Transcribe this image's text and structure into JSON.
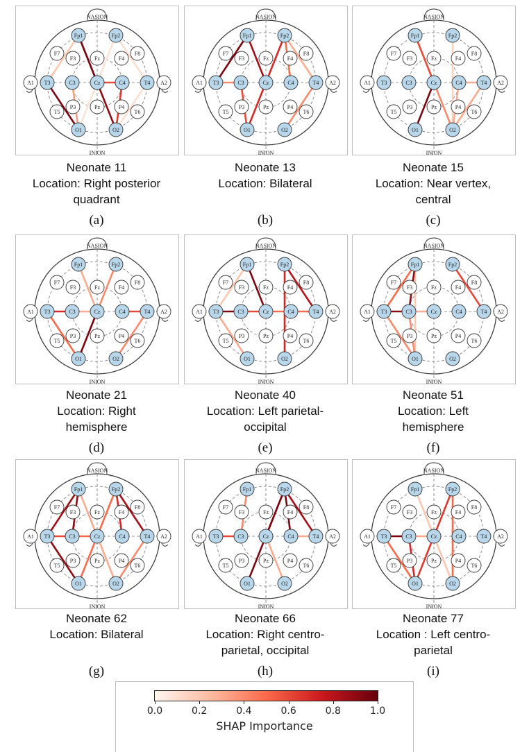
{
  "head_labels": {
    "top": "NASION",
    "bottom": "INION"
  },
  "electrodes": [
    "Fp1",
    "Fp2",
    "F7",
    "F3",
    "Fz",
    "F4",
    "F8",
    "A1",
    "T3",
    "C3",
    "Cz",
    "C4",
    "T4",
    "A2",
    "T5",
    "P3",
    "Pz",
    "P4",
    "T6",
    "O1",
    "O2"
  ],
  "highlighted_electrodes": [
    "Fp1",
    "Fp2",
    "T3",
    "C3",
    "Cz",
    "C4",
    "T4",
    "O1",
    "O2"
  ],
  "colors": {
    "node_highlight": "#b9d7ea",
    "node_plain": "#ffffff"
  },
  "panels": [
    {
      "letter": "(a)",
      "caption": [
        "Neonate 11",
        "Location: Right posterior",
        "quadrant"
      ],
      "edges": [
        [
          "Fp1",
          "Cz",
          0.95
        ],
        [
          "Fp1",
          "O2",
          0.9
        ],
        [
          "T3",
          "O1",
          0.95
        ],
        [
          "C4",
          "O2",
          0.65
        ],
        [
          "Cz",
          "C4",
          0.6
        ],
        [
          "C3",
          "O1",
          0.35
        ],
        [
          "Fp1",
          "T3",
          0.2
        ],
        [
          "Fp2",
          "T4",
          0.1
        ],
        [
          "T4",
          "O2",
          0.1
        ],
        [
          "Fp2",
          "O1",
          0.08
        ]
      ]
    },
    {
      "letter": "(b)",
      "caption": [
        "Neonate 13",
        "Location: Bilateral"
      ],
      "edges": [
        [
          "Fp1",
          "T3",
          0.95
        ],
        [
          "Fp1",
          "Cz",
          0.85
        ],
        [
          "Fp2",
          "O1",
          0.7
        ],
        [
          "C3",
          "O1",
          0.6
        ],
        [
          "T3",
          "C3",
          0.4
        ],
        [
          "Fp2",
          "C4",
          0.5
        ],
        [
          "T4",
          "O2",
          0.4
        ],
        [
          "Fp2",
          "T4",
          0.3
        ]
      ]
    },
    {
      "letter": "(c)",
      "caption": [
        "Neonate 15",
        "Location: Near vertex,",
        "central"
      ],
      "edges": [
        [
          "Fp1",
          "Cz",
          0.6
        ],
        [
          "Cz",
          "O1",
          0.95
        ],
        [
          "Cz",
          "O2",
          0.4
        ],
        [
          "C4",
          "O2",
          0.3
        ],
        [
          "T4",
          "O2",
          0.3
        ],
        [
          "C4",
          "T4",
          0.3
        ],
        [
          "Fp2",
          "O2",
          0.15
        ]
      ]
    },
    {
      "letter": "(d)",
      "caption": [
        "Neonate 21",
        "Location: Right",
        "hemisphere"
      ],
      "edges": [
        [
          "T3",
          "C3",
          0.7
        ],
        [
          "T3",
          "O1",
          0.5
        ],
        [
          "Cz",
          "O1",
          0.95
        ],
        [
          "Fp2",
          "O1",
          0.4
        ],
        [
          "C4",
          "T4",
          0.6
        ],
        [
          "T4",
          "O2",
          0.4
        ],
        [
          "Fp1",
          "Cz",
          0.3
        ],
        [
          "C3",
          "Cz",
          0.3
        ]
      ]
    },
    {
      "letter": "(e)",
      "caption": [
        "Neonate 40",
        "Location: Left parietal-",
        "occipital"
      ],
      "edges": [
        [
          "T3",
          "C3",
          0.95
        ],
        [
          "C3",
          "Cz",
          0.6
        ],
        [
          "Cz",
          "C4",
          0.5
        ],
        [
          "Fp1",
          "Cz",
          0.95
        ],
        [
          "Fp2",
          "T4",
          0.8
        ],
        [
          "Fp2",
          "O2",
          0.7
        ],
        [
          "C4",
          "T4",
          0.5
        ],
        [
          "T3",
          "O1",
          0.3
        ],
        [
          "Fp1",
          "T3",
          0.2
        ]
      ]
    },
    {
      "letter": "(f)",
      "caption": [
        "Neonate 51",
        "Location: Left",
        "hemisphere"
      ],
      "edges": [
        [
          "Fp1",
          "T3",
          0.5
        ],
        [
          "Fp1",
          "C3",
          0.9
        ],
        [
          "T3",
          "C3",
          0.9
        ],
        [
          "C3",
          "O1",
          0.4
        ],
        [
          "T3",
          "O1",
          0.4
        ],
        [
          "Fp2",
          "T4",
          0.6
        ],
        [
          "Fp1",
          "O1",
          0.2
        ],
        [
          "C3",
          "Cz",
          0.3
        ]
      ]
    },
    {
      "letter": "(g)",
      "caption": [
        "Neonate 62",
        "Location: Bilateral"
      ],
      "edges": [
        [
          "Fp1",
          "T3",
          0.85
        ],
        [
          "Fp1",
          "C3",
          0.9
        ],
        [
          "T3",
          "O1",
          0.9
        ],
        [
          "T3",
          "C3",
          0.6
        ],
        [
          "C3",
          "Cz",
          0.5
        ],
        [
          "Fp2",
          "C4",
          0.7
        ],
        [
          "Fp2",
          "T4",
          0.85
        ],
        [
          "Fp2",
          "O1",
          0.5
        ],
        [
          "T4",
          "O2",
          0.4
        ],
        [
          "Fp1",
          "O2",
          0.3
        ]
      ]
    },
    {
      "letter": "(h)",
      "caption": [
        "Neonate 66",
        "Location: Right centro-",
        "parietal, occipital"
      ],
      "edges": [
        [
          "T3",
          "C3",
          0.6
        ],
        [
          "Fp2",
          "O1",
          0.95
        ],
        [
          "Fp2",
          "C4",
          0.95
        ],
        [
          "Fp2",
          "T4",
          0.85
        ],
        [
          "Fp2",
          "Cz",
          0.7
        ],
        [
          "Fp1",
          "C3",
          0.4
        ],
        [
          "C4",
          "T4",
          0.3
        ],
        [
          "Cz",
          "O2",
          0.3
        ]
      ]
    },
    {
      "letter": "(i)",
      "caption": [
        "Neonate 77",
        "Location : Left centro-",
        "parietal"
      ],
      "edges": [
        [
          "T3",
          "C3",
          0.95
        ],
        [
          "C3",
          "O1",
          0.7
        ],
        [
          "T3",
          "O1",
          0.5
        ],
        [
          "Fp2",
          "O1",
          0.65
        ],
        [
          "Fp2",
          "O2",
          0.5
        ],
        [
          "C3",
          "Cz",
          0.3
        ],
        [
          "Fp1",
          "O2",
          0.2
        ]
      ]
    }
  ],
  "colorbar": {
    "label": "SHAP Importance",
    "ticks": [
      "0.0",
      "0.2",
      "0.4",
      "0.6",
      "0.8",
      "1.0"
    ],
    "range": [
      0,
      1
    ],
    "colormap": [
      "#fff5f0",
      "#fcbba1",
      "#fb6a4a",
      "#cb181d",
      "#67000d"
    ]
  }
}
